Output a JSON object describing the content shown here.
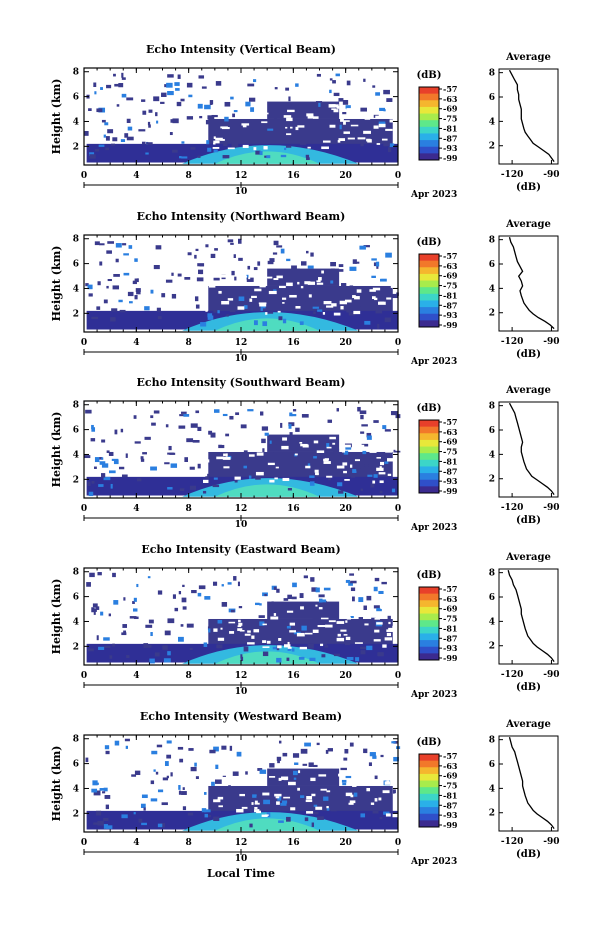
{
  "chart_data": [
    {
      "type": "heatmap",
      "title": "Echo Intensity (Vertical Beam)",
      "ylabel": "Height (km)",
      "x_ticks": [
        "0",
        "4",
        "8",
        "12",
        "16",
        "20",
        "0"
      ],
      "y_ticks": [
        "2",
        "4",
        "6",
        "8"
      ],
      "date_label": "10",
      "date_suffix": "Apr 2023",
      "unit": "(dB)",
      "colorbar_ticks": [
        "-57",
        "-63",
        "-69",
        "-75",
        "-81",
        "-87",
        "-93",
        "-99"
      ],
      "profile": {
        "title": "Average",
        "xlabel": "(dB)",
        "x_ticks": [
          "-120",
          "-90"
        ],
        "y_ticks": [
          "2",
          "4",
          "6",
          "8"
        ],
        "xlim": [
          -130,
          -85
        ],
        "ylim": [
          0.5,
          8.3
        ],
        "x": [
          -88,
          -90,
          -92,
          -96,
          -100,
          -104,
          -106,
          -108,
          -110,
          -111,
          -112,
          -113,
          -113,
          -113,
          -114,
          -115,
          -115,
          -116,
          -116,
          -118,
          -120,
          -122
        ],
        "y": [
          0.7,
          1.0,
          1.3,
          1.6,
          1.9,
          2.2,
          2.5,
          2.8,
          3.1,
          3.4,
          3.8,
          4.2,
          4.6,
          5.0,
          5.4,
          5.8,
          6.2,
          6.6,
          7.0,
          7.4,
          7.8,
          8.2
        ]
      }
    },
    {
      "type": "heatmap",
      "title": "Echo Intensity (Northward Beam)",
      "ylabel": "Height (km)",
      "x_ticks": [
        "0",
        "4",
        "8",
        "12",
        "16",
        "20",
        "0"
      ],
      "y_ticks": [
        "2",
        "4",
        "6",
        "8"
      ],
      "date_label": "10",
      "date_suffix": "Apr 2023",
      "unit": "(dB)",
      "colorbar_ticks": [
        "-57",
        "-63",
        "-69",
        "-75",
        "-81",
        "-87",
        "-93",
        "-99"
      ],
      "profile": {
        "title": "Average",
        "xlabel": "(dB)",
        "x_ticks": [
          "-120",
          "-90"
        ],
        "y_ticks": [
          "2",
          "4",
          "6",
          "8"
        ],
        "xlim": [
          -130,
          -85
        ],
        "ylim": [
          0.5,
          8.3
        ],
        "x": [
          -88,
          -91,
          -95,
          -100,
          -104,
          -107,
          -109,
          -111,
          -112,
          -113,
          -114,
          -112,
          -113,
          -115,
          -112,
          -114,
          -116,
          -117,
          -118,
          -119,
          -121,
          -122
        ],
        "y": [
          0.7,
          1.0,
          1.3,
          1.6,
          1.9,
          2.2,
          2.5,
          2.8,
          3.1,
          3.4,
          3.8,
          4.2,
          4.6,
          5.0,
          5.4,
          5.8,
          6.2,
          6.6,
          7.0,
          7.4,
          7.8,
          8.2
        ]
      }
    },
    {
      "type": "heatmap",
      "title": "Echo Intensity (Southward Beam)",
      "ylabel": "Height (km)",
      "x_ticks": [
        "0",
        "4",
        "8",
        "12",
        "16",
        "20",
        "0"
      ],
      "y_ticks": [
        "2",
        "4",
        "6",
        "8"
      ],
      "date_label": "10",
      "date_suffix": "Apr 2023",
      "unit": "(dB)",
      "colorbar_ticks": [
        "-57",
        "-63",
        "-69",
        "-75",
        "-81",
        "-87",
        "-93",
        "-99"
      ],
      "profile": {
        "title": "Average",
        "xlabel": "(dB)",
        "x_ticks": [
          "-120",
          "-90"
        ],
        "y_ticks": [
          "2",
          "4",
          "6",
          "8"
        ],
        "xlim": [
          -130,
          -85
        ],
        "ylim": [
          0.5,
          8.3
        ],
        "x": [
          -88,
          -90,
          -93,
          -97,
          -101,
          -105,
          -107,
          -109,
          -110,
          -111,
          -112,
          -113,
          -113,
          -112,
          -113,
          -114,
          -115,
          -116,
          -117,
          -118,
          -120,
          -122
        ],
        "y": [
          0.7,
          1.0,
          1.3,
          1.6,
          1.9,
          2.2,
          2.5,
          2.8,
          3.1,
          3.4,
          3.8,
          4.2,
          4.6,
          5.0,
          5.4,
          5.8,
          6.2,
          6.6,
          7.0,
          7.4,
          7.8,
          8.2
        ]
      }
    },
    {
      "type": "heatmap",
      "title": "Echo Intensity (Eastward Beam)",
      "ylabel": "Height (km)",
      "x_ticks": [
        "0",
        "4",
        "8",
        "12",
        "16",
        "20",
        "0"
      ],
      "y_ticks": [
        "2",
        "4",
        "6",
        "8"
      ],
      "date_label": "10",
      "date_suffix": "Apr 2023",
      "unit": "(dB)",
      "colorbar_ticks": [
        "-57",
        "-63",
        "-69",
        "-75",
        "-81",
        "-87",
        "-93",
        "-99"
      ],
      "profile": {
        "title": "Average",
        "xlabel": "(dB)",
        "x_ticks": [
          "-120",
          "-90"
        ],
        "y_ticks": [
          "2",
          "4",
          "6",
          "8"
        ],
        "xlim": [
          -130,
          -85
        ],
        "ylim": [
          0.5,
          8.3
        ],
        "x": [
          -88,
          -90,
          -93,
          -97,
          -101,
          -104,
          -106,
          -108,
          -109,
          -110,
          -111,
          -112,
          -113,
          -113,
          -114,
          -115,
          -116,
          -117,
          -119,
          -120,
          -122,
          -123
        ],
        "y": [
          0.7,
          1.0,
          1.3,
          1.6,
          1.9,
          2.2,
          2.5,
          2.8,
          3.1,
          3.4,
          3.8,
          4.2,
          4.6,
          5.0,
          5.4,
          5.8,
          6.2,
          6.6,
          7.0,
          7.4,
          7.8,
          8.2
        ]
      }
    },
    {
      "type": "heatmap",
      "title": "Echo Intensity (Westward Beam)",
      "ylabel": "Height (km)",
      "x_ticks": [
        "0",
        "4",
        "8",
        "12",
        "16",
        "20",
        "0"
      ],
      "y_ticks": [
        "2",
        "4",
        "6",
        "8"
      ],
      "date_label": "10",
      "date_suffix": "Apr 2023",
      "unit": "(dB)",
      "colorbar_ticks": [
        "-57",
        "-63",
        "-69",
        "-75",
        "-81",
        "-87",
        "-93",
        "-99"
      ],
      "xlabel": "Local Time",
      "profile": {
        "title": "Average",
        "xlabel": "(dB)",
        "x_ticks": [
          "-120",
          "-90"
        ],
        "y_ticks": [
          "2",
          "4",
          "6",
          "8"
        ],
        "xlim": [
          -130,
          -85
        ],
        "ylim": [
          0.5,
          8.3
        ],
        "x": [
          -88,
          -90,
          -93,
          -97,
          -101,
          -104,
          -106,
          -108,
          -109,
          -110,
          -111,
          -112,
          -112,
          -113,
          -114,
          -115,
          -116,
          -117,
          -118,
          -120,
          -121,
          -122
        ],
        "y": [
          0.7,
          1.0,
          1.3,
          1.6,
          1.9,
          2.2,
          2.5,
          2.8,
          3.1,
          3.4,
          3.8,
          4.2,
          4.6,
          5.0,
          5.4,
          5.8,
          6.2,
          6.6,
          7.0,
          7.4,
          7.8,
          8.2
        ]
      }
    }
  ],
  "colors": {
    "colorbar": [
      "#3b2a8f",
      "#2f4fc9",
      "#2a7fe0",
      "#2ab0e8",
      "#3cd6c8",
      "#5ee88a",
      "#a8ec4c",
      "#e8e83a",
      "#f5b62e",
      "#f2782a",
      "#e8402a"
    ]
  }
}
